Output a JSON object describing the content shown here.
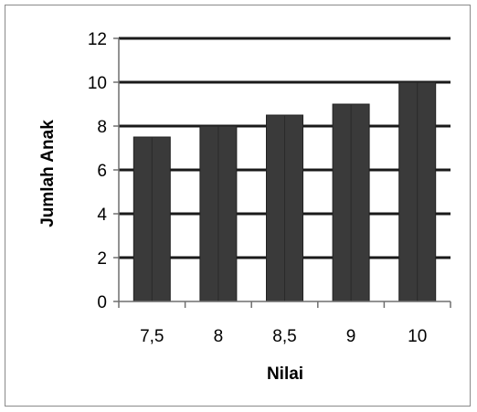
{
  "chart_data": {
    "type": "bar",
    "title": "",
    "xlabel": "Nilai",
    "ylabel": "Jumlah Anak",
    "categories": [
      "7,5",
      "8",
      "8,5",
      "9",
      "10"
    ],
    "values": [
      7.5,
      8,
      8.5,
      9,
      10
    ],
    "ylim": [
      0,
      12
    ],
    "yticks": [
      0,
      2,
      4,
      6,
      8,
      10,
      12
    ],
    "yticks_labels": [
      "0",
      "2",
      "4",
      "6",
      "8",
      "10",
      "12"
    ],
    "grid": true,
    "legend": "none",
    "colors": {
      "bar": "#3a3a3a",
      "bar_edge": "#222222",
      "grid": "#1a1a1a"
    }
  }
}
